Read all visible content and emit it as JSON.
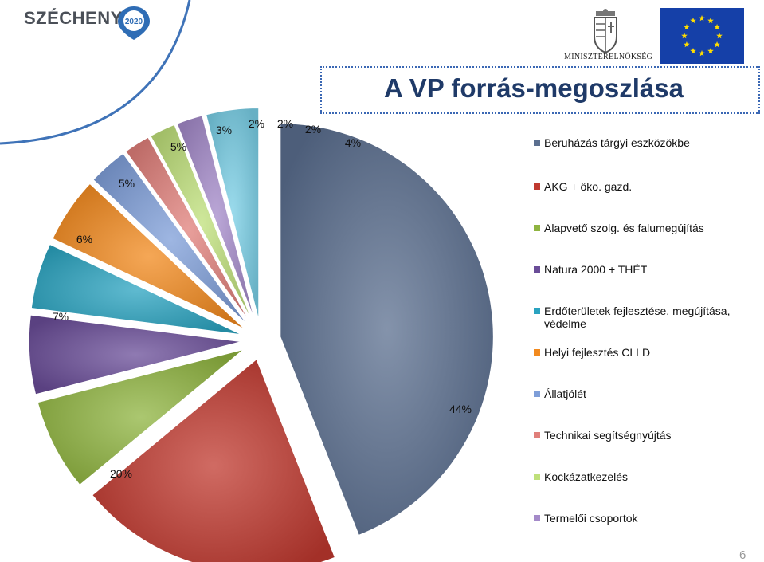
{
  "header": {
    "logo_text": "SZÉCHENYI",
    "logo_year": "2020",
    "title": "A VP forrás-megoszlása",
    "ministry_label": "MINISZTERELNÖKSÉG"
  },
  "footer": {
    "page_number": "6"
  },
  "chart_data": {
    "type": "pie",
    "title": "A VP forrás-megoszlása",
    "legend_position": "right",
    "slices": [
      {
        "name": "Beruházás tárgyi eszközökbe",
        "value": 44,
        "label": "44%",
        "color": "#5b6f8f"
      },
      {
        "name": "AKG + öko. gazd.",
        "value": 20,
        "label": "20%",
        "color": "#c0392f"
      },
      {
        "name": "Alapvető szolg. és falumegújítás",
        "value": 7,
        "label": "7%",
        "color": "#8fb440"
      },
      {
        "name": "Natura 2000 + THÉT",
        "value": 6,
        "label": "6%",
        "color": "#6a4d98"
      },
      {
        "name": "Erdőterületek fejlesztése, megújítása, védelme",
        "value": 5,
        "label": "5%",
        "color": "#2aa3c0"
      },
      {
        "name": "Helyi fejlesztés CLLD",
        "value": 5,
        "label": "5%",
        "color": "#f28a1e"
      },
      {
        "name": "Állatjólét",
        "value": 3,
        "label": "3%",
        "color": "#7e9ed8"
      },
      {
        "name": "Technikai segítségnyújtás",
        "value": 2,
        "label": "2%",
        "color": "#e07f7a"
      },
      {
        "name": "Kockázatkezelés",
        "value": 2,
        "label": "2%",
        "color": "#bfe07a"
      },
      {
        "name": "Termelői csoportok",
        "value": 2,
        "label": "2%",
        "color": "#a48ac9"
      },
      {
        "name": "",
        "value": 4,
        "label": "4%",
        "color": "#79cfe6"
      }
    ],
    "legend": [
      {
        "text": "Beruházás tárgyi eszközökbe",
        "color": "#5b6f8f"
      },
      {
        "text": "AKG + öko. gazd.",
        "color": "#c0392f"
      },
      {
        "text": "Alapvető szolg. és falumegújítás",
        "color": "#8fb440"
      },
      {
        "text": "Natura 2000 + THÉT",
        "color": "#6a4d98"
      },
      {
        "text": "Erdőterületek fejlesztése, megújítása, védelme",
        "color": "#2aa3c0"
      },
      {
        "text": "Helyi fejlesztés CLLD",
        "color": "#f28a1e"
      },
      {
        "text": "Állatjólét",
        "color": "#7e9ed8"
      },
      {
        "text": "Technikai segítségnyújtás",
        "color": "#e07f7a"
      },
      {
        "text": "Kockázatkezelés",
        "color": "#bfe07a"
      },
      {
        "text": "Termelői csoportok",
        "color": "#a48ac9"
      }
    ]
  }
}
